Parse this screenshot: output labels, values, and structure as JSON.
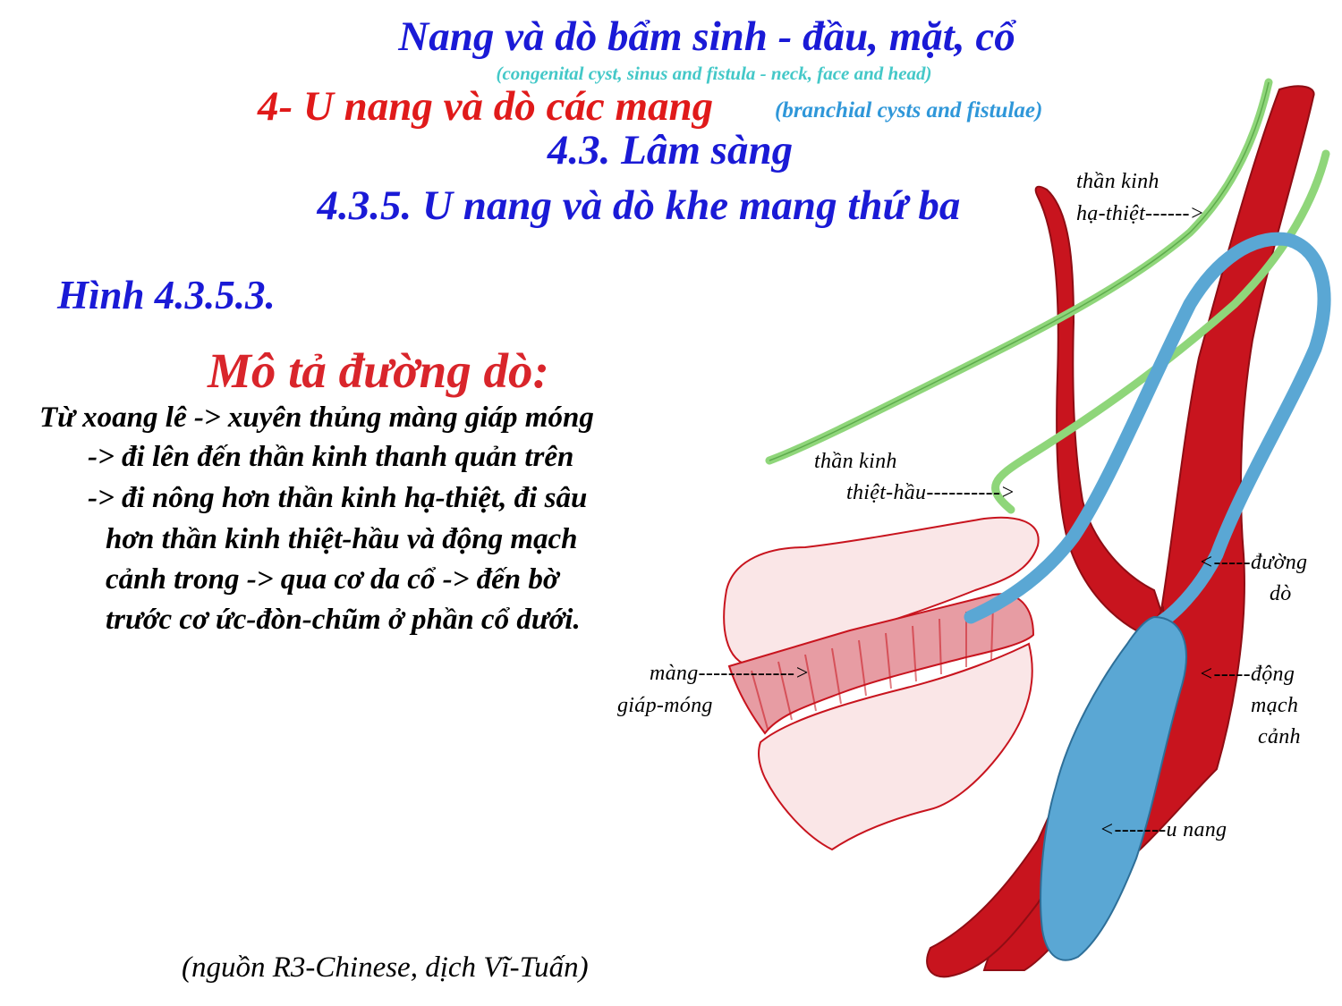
{
  "title": "Nang và dò bẩm sinh - đầu, mặt, cổ",
  "subtitle_en": "(congenital cyst, sinus and fistula - neck, face and head)",
  "section": {
    "title": "4- U nang và dò các mang",
    "english": "(branchial cysts and fistulae)"
  },
  "subsection": "4.3. Lâm sàng",
  "subsubsection": "4.3.5. U nang và dò khe mang thứ ba",
  "figure_label": "Hình 4.3.5.3.",
  "description": {
    "heading": "Mô tả đường dò:",
    "lines": [
      "Từ xoang lê -> xuyên thủng màng giáp móng",
      "-> đi lên đến thần kinh thanh quản trên",
      "-> đi nông hơn thần kinh hạ-thiệt, đi sâu",
      "hơn thần kinh thiệt-hầu và động mạch",
      "cảnh trong -> qua cơ da cổ -> đến bờ",
      "trước cơ ức-đòn-chũm ở phần cổ dưới."
    ]
  },
  "labels": {
    "hypoglossal": [
      "thần kinh",
      "hạ-thiệt------>"
    ],
    "glossopharyngeal": [
      "thần kinh",
      "thiệt-hầu---------->"
    ],
    "fistula_tract": [
      "<-----đường",
      "dò"
    ],
    "carotid": [
      "<-----động",
      "mạch",
      "cảnh"
    ],
    "thyrohyoid": [
      "màng------------->",
      "giáp-móng"
    ],
    "cyst": "<-------u nang"
  },
  "source": "(nguồn R3-Chinese, dịch Vĩ-Tuấn)",
  "colors": {
    "title_blue": "#1a1ad6",
    "section_red": "#e01a1a",
    "english_cyan": "#44c8c8",
    "english_blue": "#2f97d9",
    "artery_red": "#c8141e",
    "nerve_green": "#8fd67a",
    "cyst_blue": "#5aa7d4",
    "membrane_pink": "#f3c3c6"
  }
}
